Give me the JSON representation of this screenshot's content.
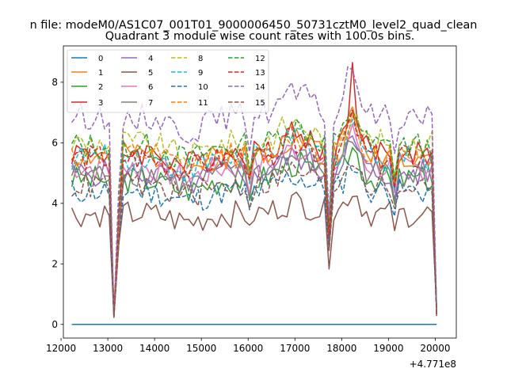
{
  "chart_data": {
    "type": "line",
    "suptitle": "n file: modeM0/AS1C07_001T01_9000006450_50731cztM0_level2_quad_clean",
    "title": "Quadrant 3 module wise count rates with 100.0s bins.",
    "xlabel": "",
    "ylabel": "",
    "offset_label": "+4.771e8",
    "xlim": [
      12050,
      20450
    ],
    "ylim": [
      -0.45,
      9.2
    ],
    "xticks": [
      12000,
      13000,
      14000,
      15000,
      16000,
      17000,
      18000,
      19000,
      20000
    ],
    "yticks": [
      0,
      2,
      4,
      6,
      8
    ],
    "x": [
      12230,
      12330,
      12430,
      12530,
      12630,
      12730,
      12830,
      12930,
      13030,
      13130,
      13230,
      13330,
      13430,
      13530,
      13630,
      13730,
      13830,
      13930,
      14030,
      14130,
      14230,
      14330,
      14430,
      14530,
      14630,
      14730,
      14830,
      14930,
      15030,
      15130,
      15230,
      15330,
      15430,
      15530,
      15630,
      15730,
      15830,
      15930,
      16030,
      16130,
      16230,
      16330,
      16430,
      16530,
      16630,
      16730,
      16830,
      16930,
      17030,
      17130,
      17230,
      17330,
      17430,
      17530,
      17630,
      17730,
      17830,
      17930,
      18030,
      18130,
      18230,
      18330,
      18430,
      18530,
      18630,
      18730,
      18830,
      18930,
      19030,
      19130,
      19230,
      19330,
      19430,
      19530,
      19630,
      19730,
      19830,
      19930,
      20030
    ],
    "legend": {
      "location": "upper-left",
      "ncol": 4,
      "entries": [
        "0",
        "1",
        "2",
        "3",
        "4",
        "5",
        "6",
        "7",
        "8",
        "9",
        "10",
        "11",
        "12",
        "13",
        "14",
        "15"
      ]
    },
    "series": [
      {
        "name": "0",
        "color": "#1f77b4",
        "dash": "solid",
        "base": 0.0,
        "seed": 1
      },
      {
        "name": "1",
        "color": "#ff7f0e",
        "dash": "solid",
        "base": 5.6,
        "seed": 2
      },
      {
        "name": "2",
        "color": "#2ca02c",
        "dash": "solid",
        "base": 4.8,
        "seed": 3
      },
      {
        "name": "3",
        "color": "#d62728",
        "dash": "solid",
        "base": 5.7,
        "seed": 4,
        "peak": 8.65
      },
      {
        "name": "4",
        "color": "#9467bd",
        "dash": "solid",
        "base": 5.0,
        "seed": 5
      },
      {
        "name": "5",
        "color": "#8c564b",
        "dash": "solid",
        "base": 3.65,
        "seed": 6
      },
      {
        "name": "6",
        "color": "#e377c2",
        "dash": "solid",
        "base": 5.2,
        "seed": 7
      },
      {
        "name": "7",
        "color": "#7f7f7f",
        "dash": "solid",
        "base": 5.0,
        "seed": 8
      },
      {
        "name": "8",
        "color": "#bcbd22",
        "dash": "dashed",
        "base": 6.0,
        "seed": 9
      },
      {
        "name": "9",
        "color": "#17becf",
        "dash": "dashed",
        "base": 5.5,
        "seed": 10
      },
      {
        "name": "10",
        "color": "#1f77b4",
        "dash": "dashed",
        "base": 4.4,
        "seed": 11
      },
      {
        "name": "11",
        "color": "#ff7f0e",
        "dash": "dashed",
        "base": 5.6,
        "seed": 12
      },
      {
        "name": "12",
        "color": "#2ca02c",
        "dash": "dashed",
        "base": 5.9,
        "seed": 13
      },
      {
        "name": "13",
        "color": "#d62728",
        "dash": "dashed",
        "base": 5.5,
        "seed": 14
      },
      {
        "name": "14",
        "color": "#9467bd",
        "dash": "dashed",
        "base": 6.9,
        "seed": 15
      },
      {
        "name": "15",
        "color": "#8c564b",
        "dash": "dashed",
        "base": 4.6,
        "seed": 16
      }
    ],
    "dips": [
      {
        "x": 13130,
        "value": 0.1
      },
      {
        "x": 17730,
        "value": 2.3
      },
      {
        "x": 19130,
        "value": 3.6
      },
      {
        "x": 20030,
        "value": 0.35
      }
    ]
  }
}
